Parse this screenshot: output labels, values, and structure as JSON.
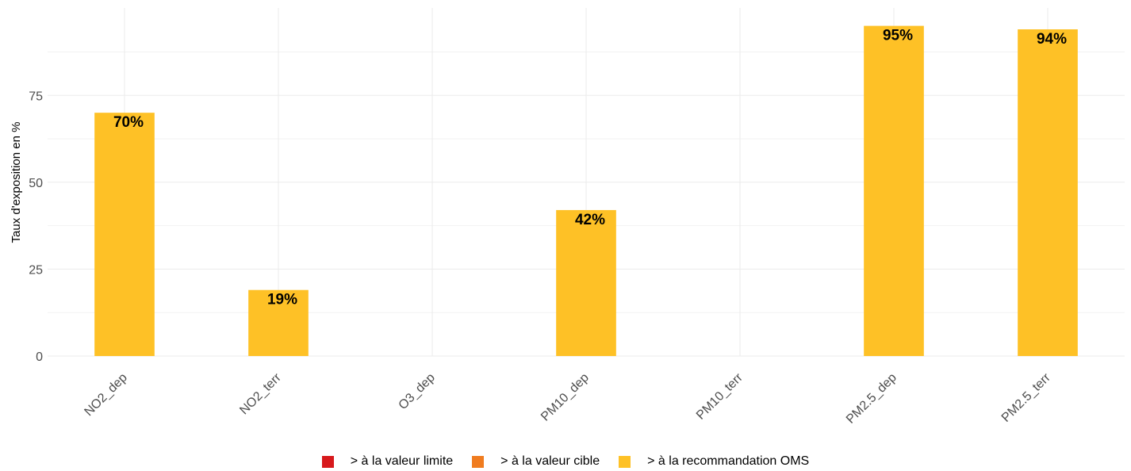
{
  "chart_data": {
    "type": "bar",
    "title": "",
    "xlabel": "",
    "ylabel": "Taux d'exposition en %",
    "ylim": [
      0,
      100
    ],
    "yticks": [
      0,
      25,
      50,
      75
    ],
    "categories": [
      "NO2_dep",
      "NO2_terr",
      "O3_dep",
      "PM10_dep",
      "PM10_terr",
      "PM2.5_dep",
      "PM2.5_terr"
    ],
    "series": [
      {
        "name": "> à la valeur limite",
        "color": "#d7191c",
        "values": [
          0,
          0,
          0,
          0,
          0,
          0,
          0
        ],
        "labels": [
          "",
          "",
          "",
          "",
          "",
          "",
          ""
        ]
      },
      {
        "name": "> à la valeur cible",
        "color": "#f07c1f",
        "values": [
          0,
          0,
          0,
          0,
          0,
          0,
          0
        ],
        "labels": [
          "",
          "",
          "",
          "",
          "",
          "",
          ""
        ]
      },
      {
        "name": "> à la recommandation OMS",
        "color": "#fec126",
        "values": [
          70,
          19,
          0,
          42,
          0,
          95,
          94
        ],
        "labels": [
          "70%",
          "19%",
          "",
          "42%",
          "",
          "95%",
          "94%"
        ]
      }
    ],
    "grid": true,
    "legend_position": "bottom"
  },
  "legend": {
    "items": [
      {
        "label": "> à la valeur limite",
        "color": "#d7191c"
      },
      {
        "label": "> à la valeur cible",
        "color": "#f07c1f"
      },
      {
        "label": "> à la recommandation OMS",
        "color": "#fec126"
      }
    ]
  }
}
